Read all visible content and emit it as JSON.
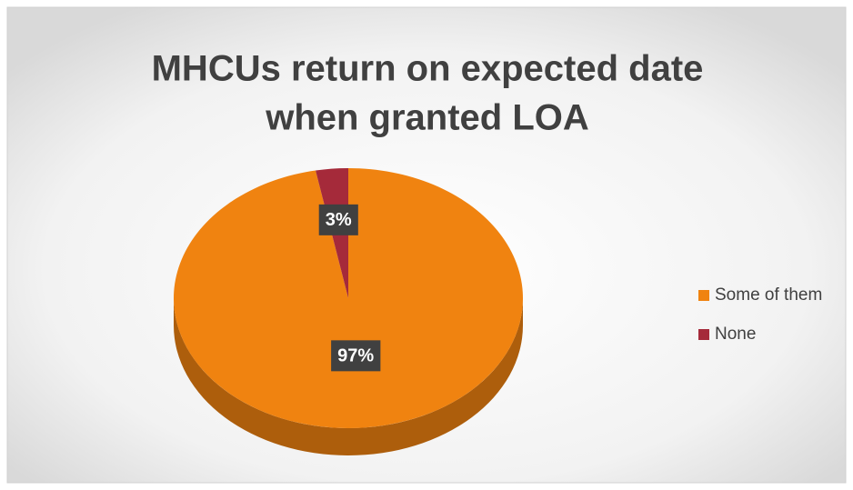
{
  "chart_data": {
    "type": "pie",
    "title": [
      "MHCUs return on expected date",
      "when granted LOA"
    ],
    "categories": [
      "Some of them",
      "None"
    ],
    "values": [
      97,
      3
    ],
    "value_labels": [
      "97%",
      "3%"
    ],
    "colors": [
      "#f08310",
      "#a52a3a"
    ],
    "legend": "right"
  }
}
